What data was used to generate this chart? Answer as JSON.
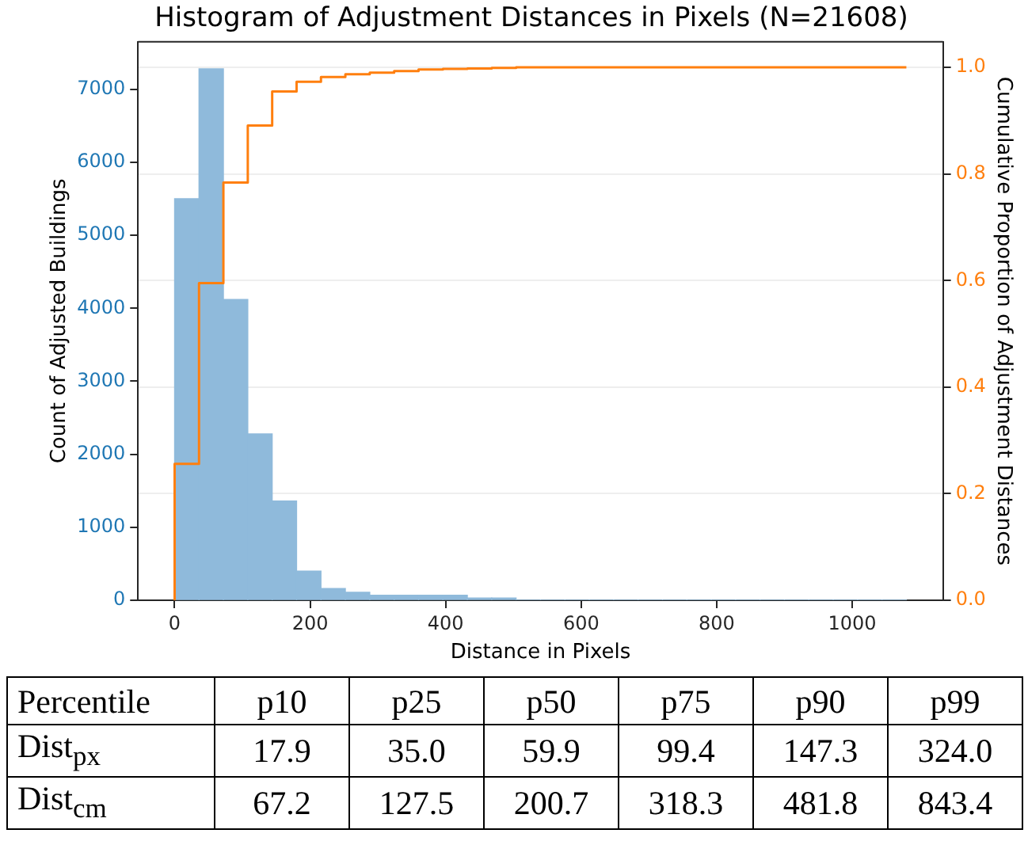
{
  "chart_data": {
    "type": "histogram",
    "title": "Histogram of Adjustment Distances in Pixels (N=21608)",
    "xlabel": "Distance in Pixels",
    "ylabel": "Count of Adjusted Buildings",
    "y2label": "Cumulative Proportion of Adjustment Distances",
    "bins": [
      0,
      36,
      72,
      108,
      144,
      180,
      216,
      252,
      288,
      324,
      360,
      396,
      432,
      468,
      504,
      540,
      576,
      612,
      648,
      684,
      720,
      756,
      792,
      828,
      864,
      900,
      936,
      972,
      1008,
      1044,
      1080
    ],
    "series": [
      {
        "color": "#8fbadb",
        "values": [
          5500,
          7280,
          4120,
          2280,
          1360,
          400,
          160,
          110,
          70,
          70,
          70,
          70,
          30,
          30,
          0,
          0,
          0,
          0,
          0,
          0,
          0,
          0,
          0,
          0,
          0,
          0,
          0,
          0,
          0,
          0
        ]
      },
      {
        "type": "step",
        "axis": "y2",
        "color": "#ff7f0e",
        "x": [
          0,
          36,
          72,
          108,
          144,
          180,
          216,
          252,
          288,
          324,
          360,
          396,
          432,
          468,
          504,
          540,
          576,
          612,
          648,
          684,
          720,
          756,
          792,
          828,
          864,
          900,
          936,
          972,
          1008,
          1044,
          1080
        ],
        "values": [
          0,
          0.256,
          0.595,
          0.784,
          0.891,
          0.955,
          0.973,
          0.982,
          0.987,
          0.99,
          0.993,
          0.996,
          0.997,
          0.998,
          0.999,
          1.0,
          1.0,
          1.0,
          1.0,
          1.0,
          1.0,
          1.0,
          1.0,
          1.0,
          1.0,
          1.0,
          1.0,
          1.0,
          1.0,
          1.0,
          1.0
        ]
      }
    ],
    "xlim": [
      -54,
      1134
    ],
    "xticks": [
      0,
      200,
      400,
      600,
      800,
      1000
    ],
    "ylim": [
      0,
      7650
    ],
    "yticks": [
      0,
      1000,
      2000,
      3000,
      4000,
      5000,
      6000,
      7000
    ],
    "y2lim": [
      0,
      1.048
    ],
    "y2ticks": [
      {
        "value": 0,
        "label": "0.0"
      },
      0.2,
      0.4,
      0.6,
      0.8,
      {
        "value": 1,
        "label": "1.0"
      }
    ],
    "grid": "y",
    "legend": false,
    "annotations": [
      "Percentile",
      "p10",
      "p25",
      "p50",
      "p75",
      "p90",
      "p99",
      "Dist$_{px}$",
      "17.9",
      "35.0",
      "59.9",
      "99.4",
      "147.3",
      "324.0",
      "Dist$_{cm}$",
      "67.2",
      "127.5",
      "200.7",
      "318.3",
      "481.8",
      "843.4"
    ]
  }
}
